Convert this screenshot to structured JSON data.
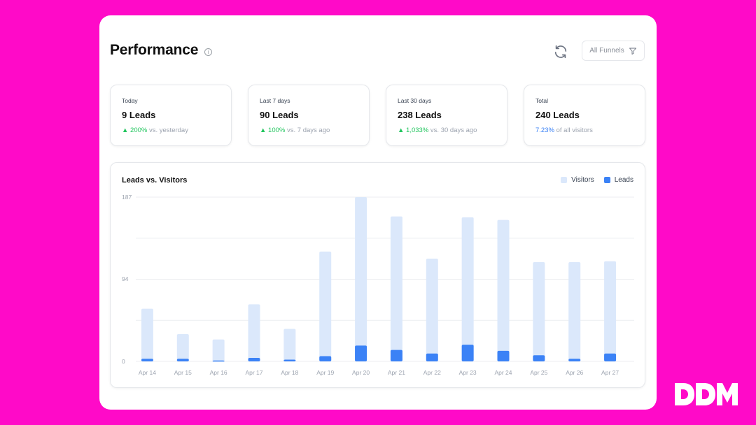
{
  "header": {
    "title": "Performance",
    "info_icon": "info-icon",
    "refresh_icon": "refresh-icon",
    "filter_label": "All Funnels",
    "filter_icon": "filter-icon"
  },
  "cards": [
    {
      "label": "Today",
      "value": "9 Leads",
      "change": "200%",
      "change_suffix": "vs. yesterday"
    },
    {
      "label": "Last 7 days",
      "value": "90 Leads",
      "change": "100%",
      "change_suffix": "vs. 7 days ago"
    },
    {
      "label": "Last 30 days",
      "value": "238 Leads",
      "change": "1,033%",
      "change_suffix": "vs. 30 days ago"
    },
    {
      "label": "Total",
      "value": "240 Leads",
      "change": "7.23%",
      "change_suffix": "of all visitors"
    }
  ],
  "colors": {
    "visitors": "#dbe8fb",
    "leads": "#3b82f6",
    "up": "#22c55e",
    "background": "#ff0ac8"
  },
  "chart_data": {
    "type": "bar",
    "title": "Leads vs. Visitors",
    "categories": [
      "Apr 14",
      "Apr 15",
      "Apr 16",
      "Apr 17",
      "Apr 18",
      "Apr 19",
      "Apr 20",
      "Apr 21",
      "Apr 22",
      "Apr 23",
      "Apr 24",
      "Apr 25",
      "Apr 26",
      "Apr 27"
    ],
    "series": [
      {
        "name": "Visitors",
        "values": [
          60,
          31,
          25,
          65,
          37,
          125,
          187,
          165,
          117,
          164,
          161,
          113,
          113,
          114
        ]
      },
      {
        "name": "Leads",
        "values": [
          3,
          3,
          1,
          4,
          2,
          6,
          18,
          13,
          9,
          19,
          12,
          7,
          3,
          9
        ]
      }
    ],
    "yticks": [
      0,
      94,
      187
    ],
    "ylim": [
      0,
      187
    ],
    "legend": "top-right",
    "overlaid": true,
    "grid": true
  },
  "brand": {
    "logo_text": "DDM"
  }
}
